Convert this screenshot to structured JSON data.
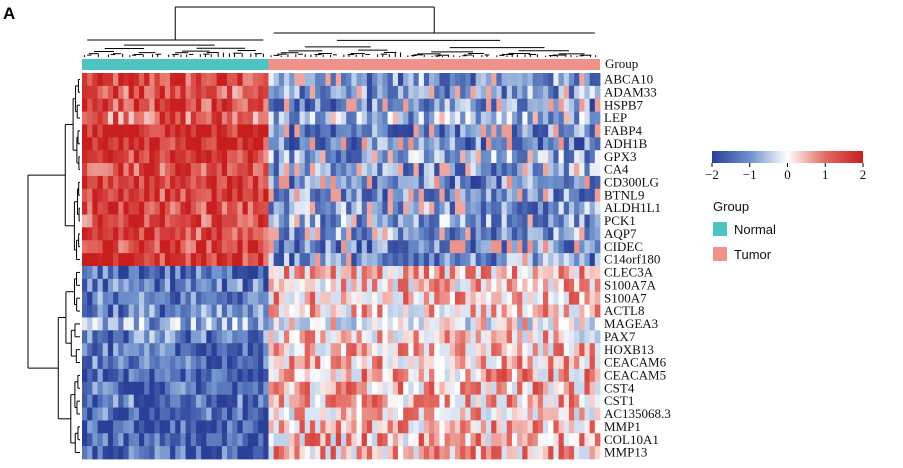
{
  "panel_label": "A",
  "chart_data": {
    "type": "heatmap",
    "title": "",
    "row_labels": [
      "ABCA10",
      "ADAM33",
      "HSPB7",
      "LEP",
      "FABP4",
      "ADH1B",
      "GPX3",
      "CA4",
      "CD300LG",
      "BTNL9",
      "ALDH1L1",
      "PCK1",
      "AQP7",
      "CIDEC",
      "C14orf180",
      "CLEC3A",
      "S100A7A",
      "S100A7",
      "ACTL8",
      "MAGEA3",
      "PAX7",
      "HOXB13",
      "CEACAM6",
      "CEACAM5",
      "CST4",
      "CST1",
      "AC135068.3",
      "MMP1",
      "COL10A1",
      "MMP13"
    ],
    "annotation": {
      "label": "Group",
      "samples": [
        {
          "group": "Normal",
          "count": 36
        },
        {
          "group": "Tumor",
          "count": 64
        }
      ]
    },
    "row_means": {
      "Normal": [
        1.4,
        1.3,
        1.5,
        1.2,
        1.9,
        1.8,
        1.6,
        1.5,
        1.7,
        1.6,
        1.6,
        1.4,
        1.5,
        1.6,
        1.7,
        -1.5,
        -1.3,
        -1.3,
        -1.2,
        -0.8,
        -1.2,
        -1.5,
        -1.4,
        -1.5,
        -1.5,
        -1.4,
        -1.5,
        -1.7,
        -1.6,
        -1.6
      ],
      "Tumor": [
        -1.0,
        -1.0,
        -1.1,
        -0.8,
        -1.1,
        -1.2,
        -0.9,
        -1.0,
        -1.2,
        -1.1,
        -1.0,
        -0.9,
        -1.0,
        -1.2,
        -1.1,
        0.5,
        0.4,
        0.5,
        0.4,
        0.0,
        0.3,
        0.4,
        0.5,
        0.6,
        0.6,
        0.5,
        0.4,
        0.5,
        0.7,
        0.6
      ]
    },
    "colorbar": {
      "ticks": [
        "−2",
        "−1",
        "0",
        "1",
        "2"
      ],
      "colors": [
        "#2a3f98",
        "#ffffff",
        "#c81e1e"
      ],
      "range": [
        -2,
        2
      ]
    },
    "legend": {
      "title": "Group",
      "entries": [
        {
          "label": "Normal",
          "color": "#4ec3c3"
        },
        {
          "label": "Tumor",
          "color": "#f0928a"
        }
      ]
    },
    "row_clusters": 2,
    "column_clusters": 2
  }
}
